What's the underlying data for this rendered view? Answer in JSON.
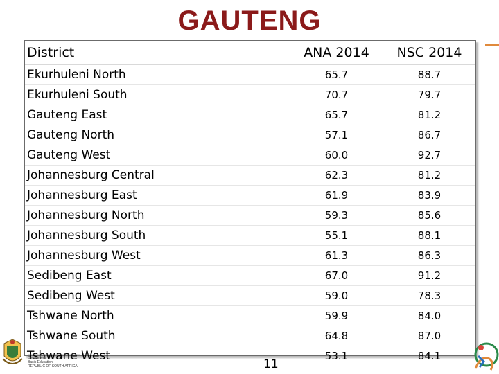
{
  "title": "GAUTENG",
  "table": {
    "headers": {
      "district": "District",
      "ana": "ANA 2014",
      "nsc": "NSC 2014"
    },
    "rows": [
      {
        "district": "Ekurhuleni North",
        "ana": "65.7",
        "nsc": "88.7"
      },
      {
        "district": "Ekurhuleni South",
        "ana": "70.7",
        "nsc": "79.7"
      },
      {
        "district": "Gauteng East",
        "ana": "65.7",
        "nsc": "81.2"
      },
      {
        "district": "Gauteng North",
        "ana": "57.1",
        "nsc": "86.7"
      },
      {
        "district": "Gauteng West",
        "ana": "60.0",
        "nsc": "92.7"
      },
      {
        "district": "Johannesburg Central",
        "ana": "62.3",
        "nsc": "81.2"
      },
      {
        "district": "Johannesburg East",
        "ana": "61.9",
        "nsc": "83.9"
      },
      {
        "district": "Johannesburg North",
        "ana": "59.3",
        "nsc": "85.6"
      },
      {
        "district": "Johannesburg South",
        "ana": "55.1",
        "nsc": "88.1"
      },
      {
        "district": "Johannesburg West",
        "ana": "61.3",
        "nsc": "86.3"
      },
      {
        "district": "Sedibeng East",
        "ana": "67.0",
        "nsc": "91.2"
      },
      {
        "district": "Sedibeng West",
        "ana": "59.0",
        "nsc": "78.3"
      },
      {
        "district": "Tshwane North",
        "ana": "59.9",
        "nsc": "84.0"
      },
      {
        "district": "Tshwane South",
        "ana": "64.8",
        "nsc": "87.0"
      },
      {
        "district": "Tshwane West",
        "ana": "53.1",
        "nsc": "84.1"
      }
    ]
  },
  "page_number": "11",
  "footer_logo": {
    "line1": "Department:",
    "line2": "Basic Education",
    "line3": "REPUBLIC OF SOUTH AFRICA"
  },
  "colors": {
    "title": "#8b1a1a",
    "accent": "#e08a3c"
  }
}
